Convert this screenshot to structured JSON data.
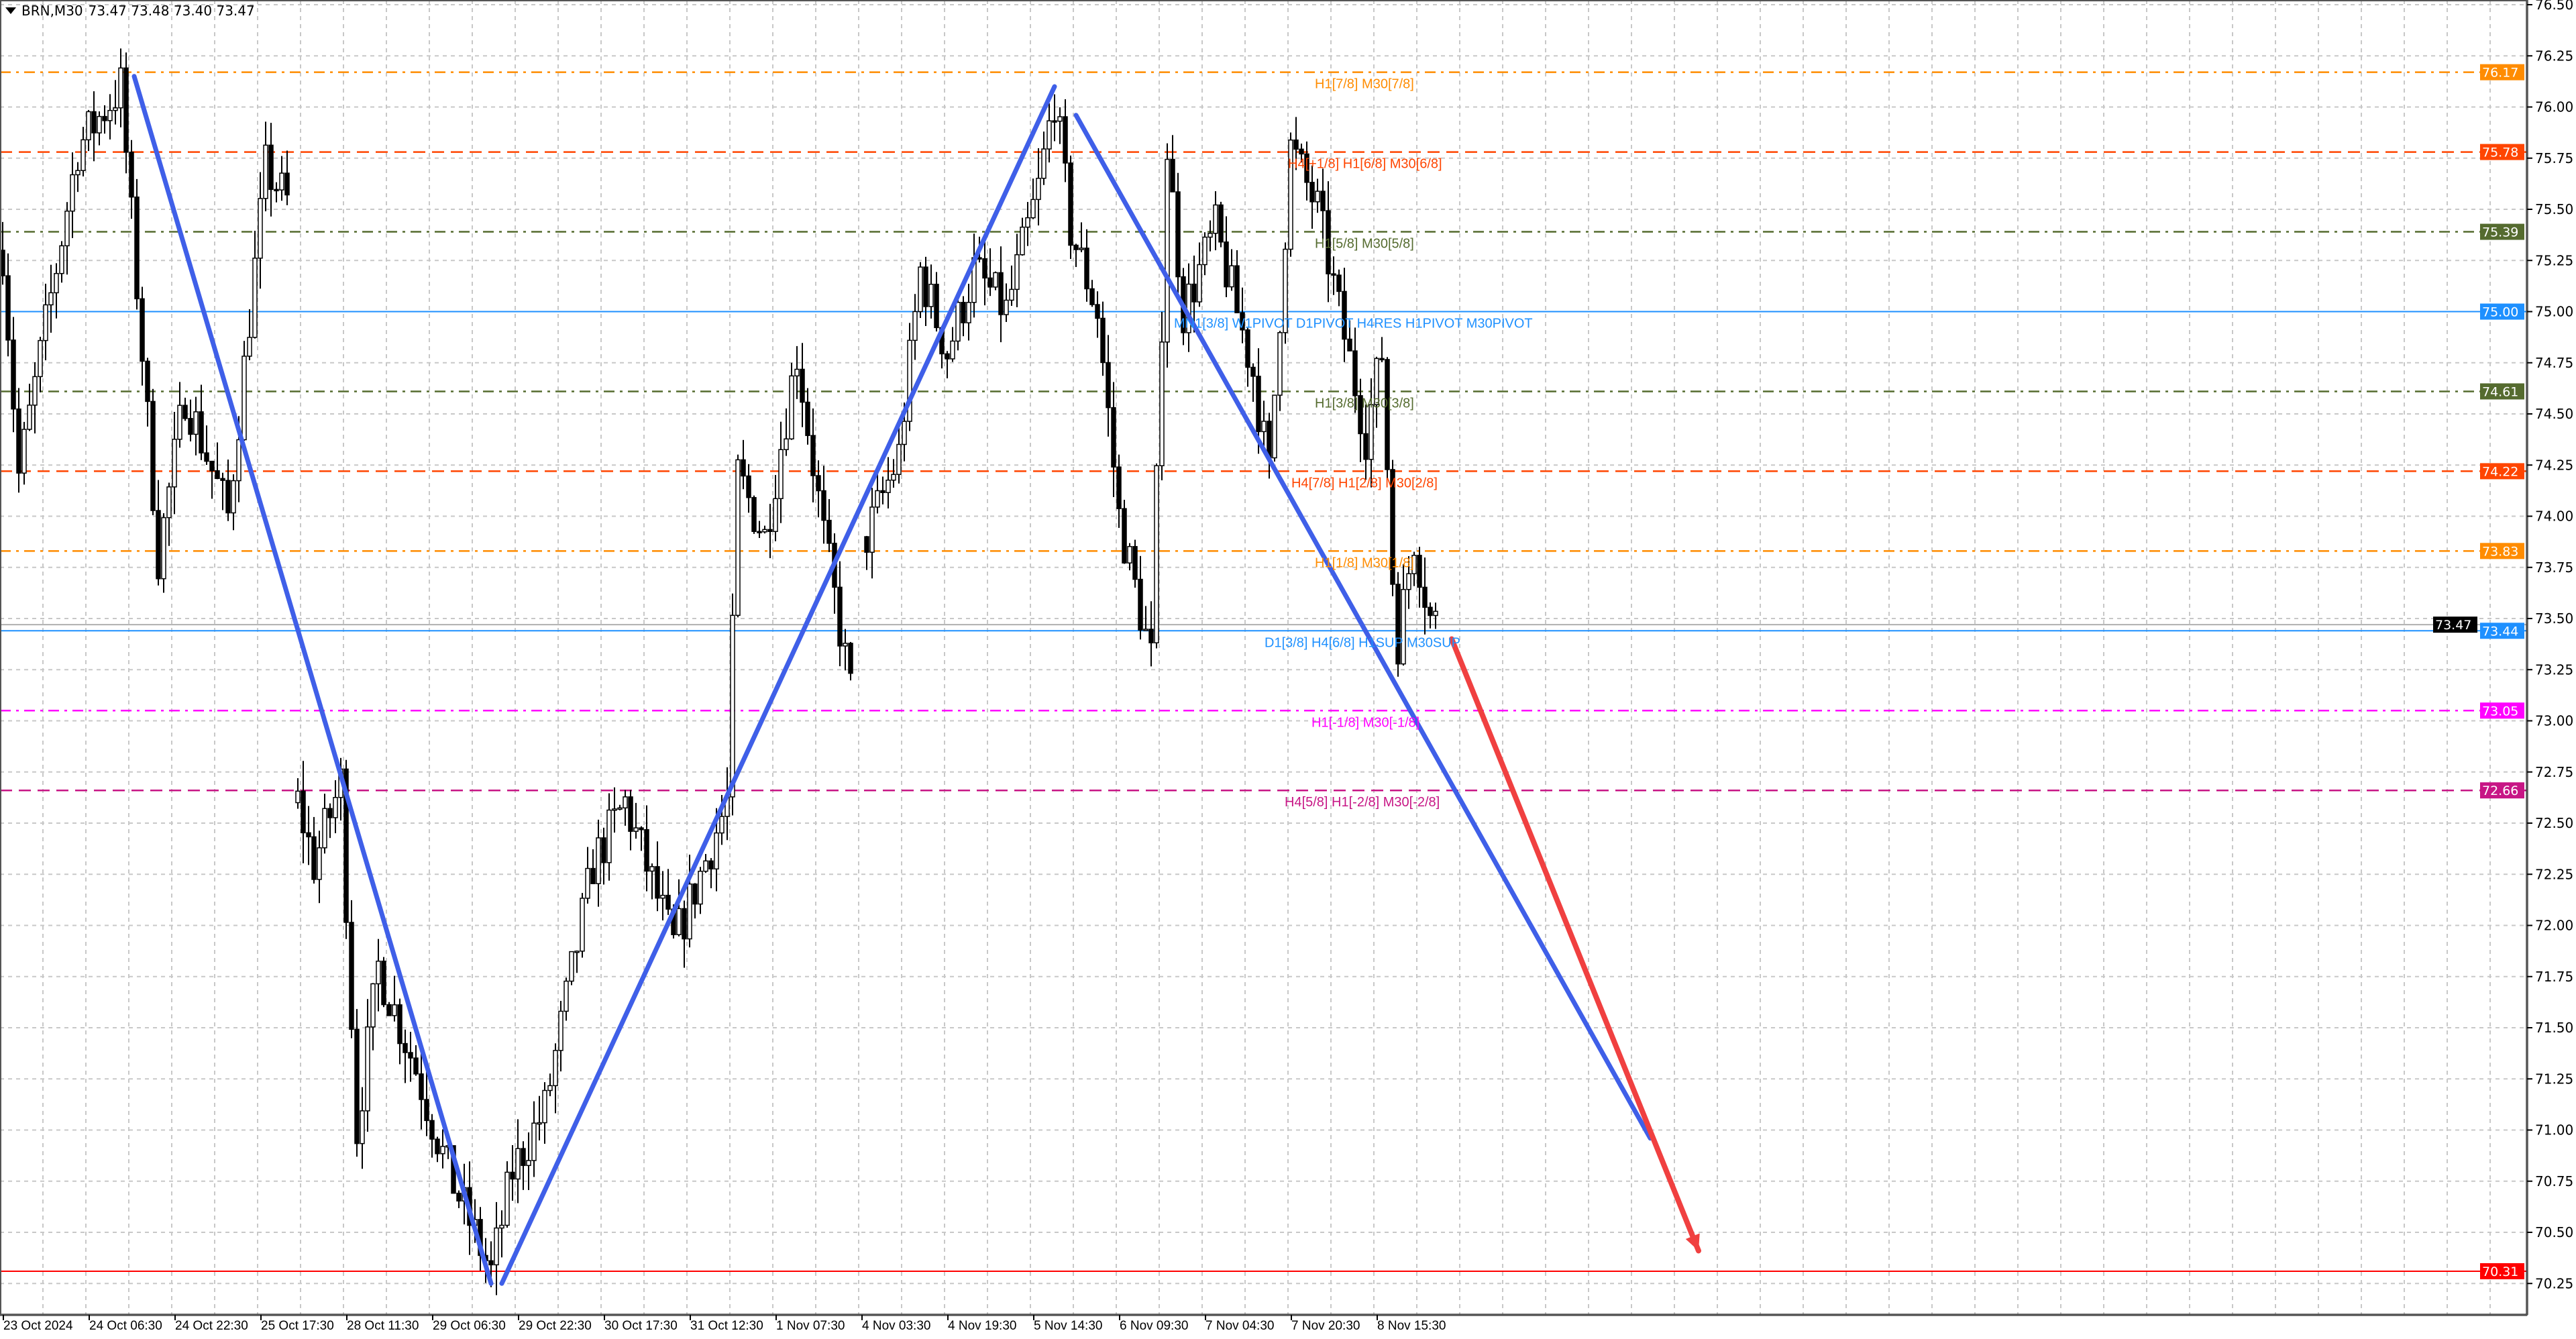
{
  "header": {
    "symbol": "BRN,M30",
    "ohlc": "73.47 73.48 73.40 73.47",
    "menu_icon": "triangle-down-icon"
  },
  "chart_data": {
    "type": "candlestick",
    "symbol": "BRN",
    "timeframe": "M30",
    "grid": true,
    "ylim": [
      70.2,
      76.5
    ],
    "y_ticks": [
      "76.50",
      "76.25",
      "76.00",
      "75.75",
      "75.50",
      "75.25",
      "75.00",
      "74.75",
      "74.50",
      "74.25",
      "74.00",
      "73.75",
      "73.50",
      "73.25",
      "73.00",
      "72.75",
      "72.50",
      "72.25",
      "72.00",
      "71.75",
      "71.50",
      "71.25",
      "71.00",
      "70.75",
      "70.50",
      "70.25"
    ],
    "x_ticks": [
      "23 Oct 2024",
      "24 Oct 06:30",
      "24 Oct 22:30",
      "25 Oct 17:30",
      "28 Oct 11:30",
      "29 Oct 06:30",
      "29 Oct 22:30",
      "30 Oct 17:30",
      "31 Oct 12:30",
      "1 Nov 07:30",
      "4 Nov 03:30",
      "4 Nov 19:30",
      "5 Nov 14:30",
      "6 Nov 09:30",
      "7 Nov 04:30",
      "7 Nov 20:30",
      "8 Nov 15:30"
    ],
    "price_path_segments": [
      [
        [
          0,
          75.3
        ],
        [
          3,
          74.2
        ],
        [
          14,
          75.8
        ],
        [
          22,
          76.1
        ],
        [
          26,
          74.8
        ],
        [
          29,
          73.8
        ],
        [
          34,
          74.6
        ],
        [
          42,
          74.0
        ],
        [
          49,
          75.7
        ],
        [
          54,
          75.5
        ]
      ],
      [
        [
          55,
          72.6
        ],
        [
          58,
          72.3
        ],
        [
          63,
          72.7
        ],
        [
          66,
          71.0
        ],
        [
          70,
          71.8
        ],
        [
          77,
          71.3
        ],
        [
          83,
          70.8
        ],
        [
          91,
          70.3
        ],
        [
          95,
          70.8
        ],
        [
          101,
          71.1
        ],
        [
          110,
          72.3
        ],
        [
          116,
          72.6
        ],
        [
          125,
          71.9
        ],
        [
          135,
          72.6
        ],
        [
          137,
          74.2
        ],
        [
          142,
          73.9
        ],
        [
          148,
          74.8
        ],
        [
          153,
          73.9
        ],
        [
          157,
          73.3
        ],
        [
          159,
          73.0
        ]
      ],
      [
        [
          161,
          73.9
        ],
        [
          167,
          74.3
        ],
        [
          171,
          75.2
        ],
        [
          176,
          74.8
        ],
        [
          181,
          75.2
        ],
        [
          187,
          75.0
        ],
        [
          193,
          75.6
        ],
        [
          196,
          76.05
        ],
        [
          199,
          75.4
        ],
        [
          204,
          75.0
        ],
        [
          208,
          74.0
        ],
        [
          214,
          73.3
        ],
        [
          217,
          75.8
        ],
        [
          220,
          75.0
        ],
        [
          226,
          75.4
        ],
        [
          233,
          74.7
        ],
        [
          236,
          74.2
        ],
        [
          240,
          75.8
        ],
        [
          245,
          75.5
        ],
        [
          249,
          75.0
        ],
        [
          254,
          74.4
        ],
        [
          257,
          74.8
        ],
        [
          259,
          73.7
        ],
        [
          260,
          73.4
        ],
        [
          263,
          73.9
        ],
        [
          266,
          73.5
        ],
        [
          268,
          73.47
        ]
      ]
    ],
    "levels": [
      {
        "price": 76.17,
        "tag": "76.17",
        "label": "H1[7/8] M30[7/8]",
        "color": "#ff8c00",
        "style": "dashdot"
      },
      {
        "price": 75.78,
        "tag": "75.78",
        "label": "H4[+1/8] H1[6/8] M30[6/8]",
        "color": "#ff4500",
        "style": "dash"
      },
      {
        "price": 75.39,
        "tag": "75.39",
        "label": "H1[5/8] M30[5/8]",
        "color": "#556b2f",
        "style": "dashdot"
      },
      {
        "price": 75.0,
        "tag": "75.00",
        "label": "MN1[3/8] W1PIVOT D1PIVOT H4RES H1PIVOT M30PIVOT",
        "color": "#1e90ff",
        "style": "solid"
      },
      {
        "price": 74.61,
        "tag": "74.61",
        "label": "H1[3/8] M30[3/8]",
        "color": "#556b2f",
        "style": "dashdot"
      },
      {
        "price": 74.22,
        "tag": "74.22",
        "label": "H4[7/8] H1[2/8] M30[2/8]",
        "color": "#ff4500",
        "style": "dash"
      },
      {
        "price": 73.83,
        "tag": "73.83",
        "label": "H1[1/8] M30[1/8]",
        "color": "#ff8c00",
        "style": "dashdot"
      },
      {
        "price": 73.44,
        "tag": "73.44",
        "label": "D1[3/8] H4[6/8] H1SUP M30SUP",
        "color": "#1e90ff",
        "style": "solid"
      },
      {
        "price": 73.05,
        "tag": "73.05",
        "label": "H1[-1/8] M30[-1/8]",
        "color": "#ff00ff",
        "style": "dashdot"
      },
      {
        "price": 72.66,
        "tag": "72.66",
        "label": "H4[5/8] H1[-2/8] M30[-2/8]",
        "color": "#c71585",
        "style": "dash"
      },
      {
        "price": 70.31,
        "tag": "70.31",
        "label": "",
        "color": "#ff0000",
        "style": "solid"
      }
    ],
    "current_price": {
      "price": 73.47,
      "tag": "73.47",
      "color": "#000000"
    },
    "trendlines": [
      {
        "from": [
          24.5,
          76.15
        ],
        "to": [
          91,
          70.25
        ],
        "color": "#3f5fe8"
      },
      {
        "from": [
          93,
          70.25
        ],
        "to": [
          196,
          76.1
        ],
        "color": "#3f5fe8"
      },
      {
        "from": [
          200,
          75.96
        ],
        "to": [
          307,
          70.96
        ],
        "color": "#3f5fe8"
      }
    ],
    "forecast_arrow": {
      "from": [
        270,
        73.4
      ],
      "to": [
        316,
        70.41
      ],
      "color": "#f04040"
    }
  }
}
